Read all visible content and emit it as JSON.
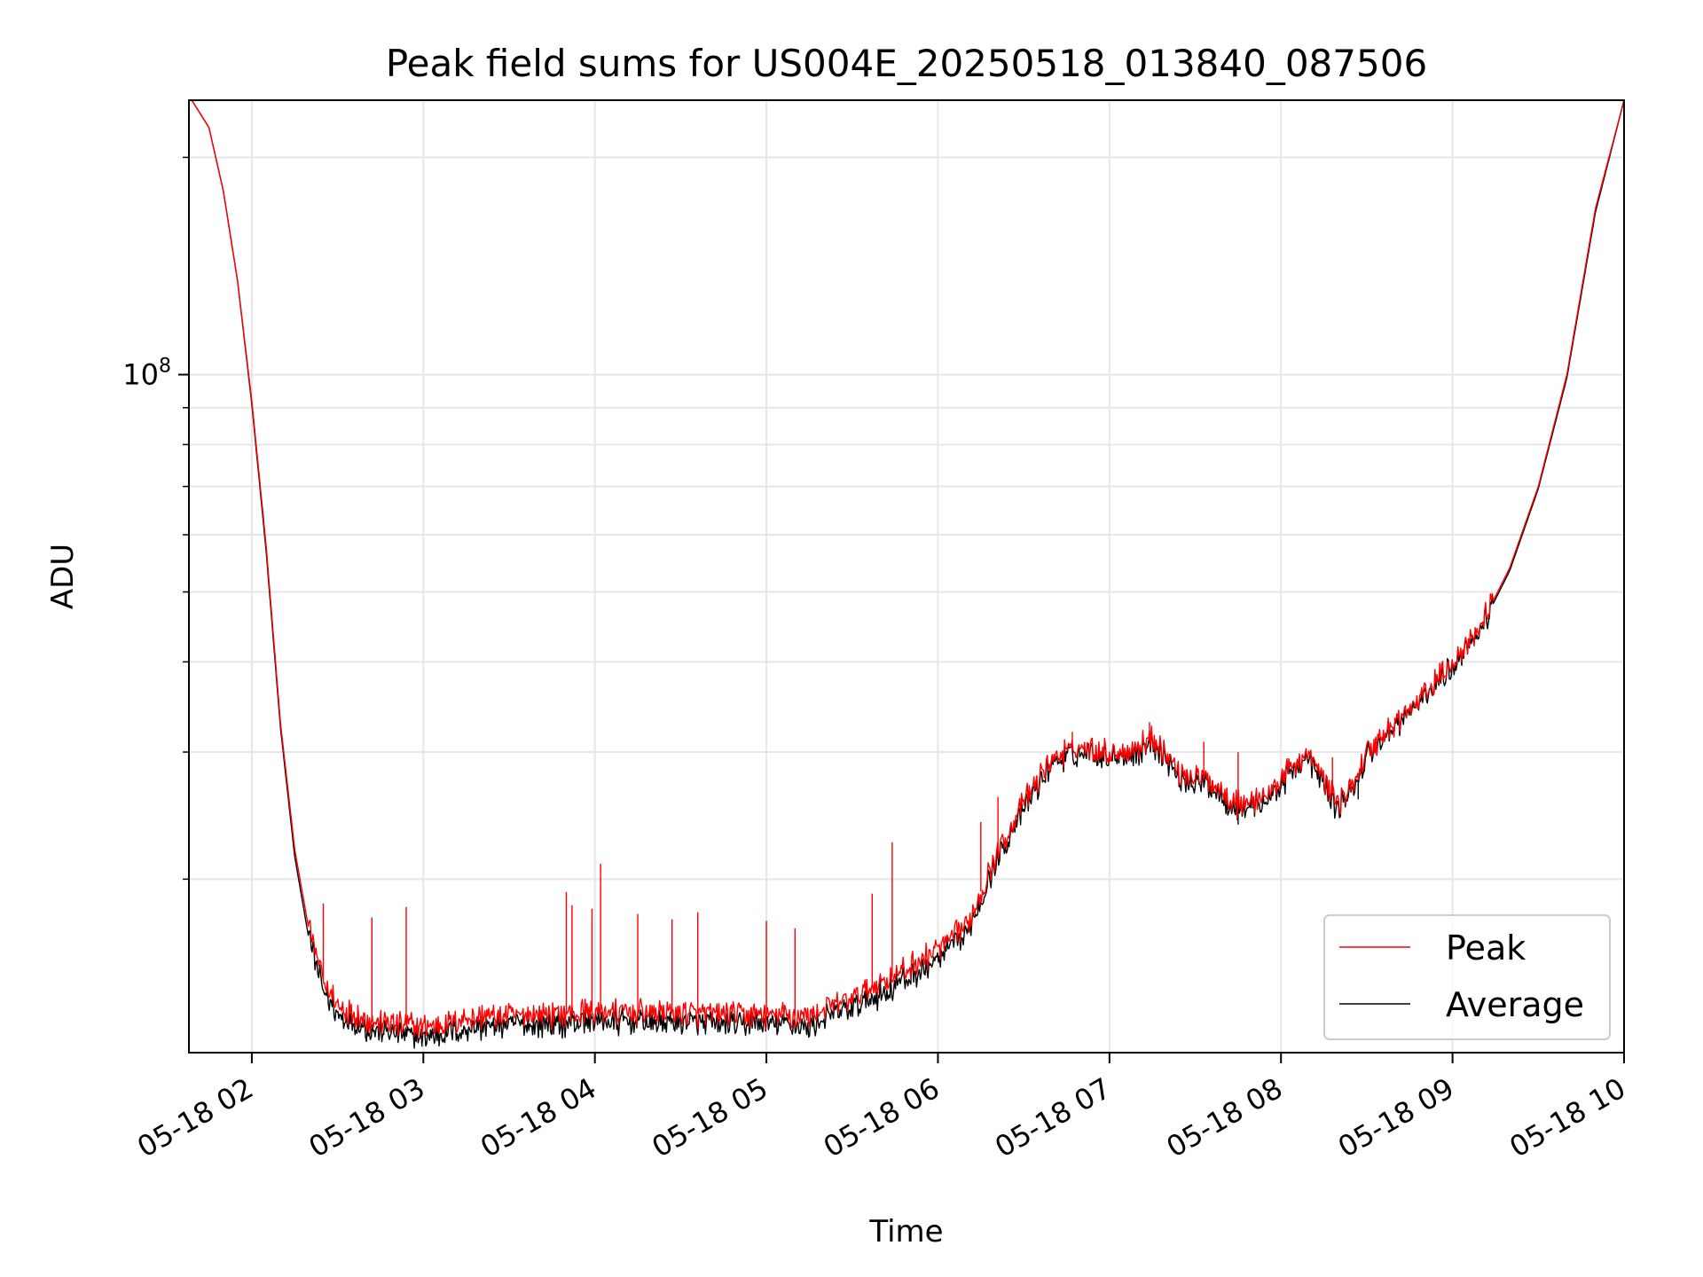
{
  "chart_data": {
    "type": "line",
    "title": "Peak field sums for US004E_20250518_013840_087506",
    "xlabel": "Time",
    "ylabel": "ADU",
    "yscale": "log",
    "grid": true,
    "legend_position": "lower-right",
    "xlim": [
      "2025-05-18T01:38",
      "2025-05-18T10:00"
    ],
    "ylim": [
      11500000,
      240000000
    ],
    "x_tick_labels": [
      "05-18 02",
      "05-18 03",
      "05-18 04",
      "05-18 05",
      "05-18 06",
      "05-18 07",
      "05-18 08",
      "05-18 09",
      "05-18 10"
    ],
    "x_ticks": [
      "2025-05-18T02:00",
      "2025-05-18T03:00",
      "2025-05-18T04:00",
      "2025-05-18T05:00",
      "2025-05-18T06:00",
      "2025-05-18T07:00",
      "2025-05-18T08:00",
      "2025-05-18T09:00",
      "2025-05-18T10:00"
    ],
    "y_tick_labels": [
      {
        "base": "10",
        "exp": "8",
        "value": 100000000
      }
    ],
    "y_minor_ticks": [
      20000000,
      30000000,
      40000000,
      50000000,
      60000000,
      70000000,
      80000000,
      90000000,
      200000000
    ],
    "series": [
      {
        "name": "Peak",
        "color": "#ff0000",
        "x": [
          "2025-05-18T01:39",
          "2025-05-18T01:45",
          "2025-05-18T01:50",
          "2025-05-18T01:55",
          "2025-05-18T02:00",
          "2025-05-18T02:05",
          "2025-05-18T02:10",
          "2025-05-18T02:15",
          "2025-05-18T02:20",
          "2025-05-18T02:25",
          "2025-05-18T02:30",
          "2025-05-18T02:40",
          "2025-05-18T02:50",
          "2025-05-18T03:00",
          "2025-05-18T03:20",
          "2025-05-18T03:40",
          "2025-05-18T04:00",
          "2025-05-18T04:20",
          "2025-05-18T04:40",
          "2025-05-18T05:00",
          "2025-05-18T05:15",
          "2025-05-18T05:30",
          "2025-05-18T05:45",
          "2025-05-18T06:00",
          "2025-05-18T06:10",
          "2025-05-18T06:20",
          "2025-05-18T06:30",
          "2025-05-18T06:40",
          "2025-05-18T06:50",
          "2025-05-18T07:00",
          "2025-05-18T07:10",
          "2025-05-18T07:15",
          "2025-05-18T07:25",
          "2025-05-18T07:35",
          "2025-05-18T07:45",
          "2025-05-18T07:55",
          "2025-05-18T08:05",
          "2025-05-18T08:10",
          "2025-05-18T08:15",
          "2025-05-18T08:20",
          "2025-05-18T08:25",
          "2025-05-18T08:30",
          "2025-05-18T08:40",
          "2025-05-18T08:50",
          "2025-05-18T09:00",
          "2025-05-18T09:10",
          "2025-05-18T09:20",
          "2025-05-18T09:30",
          "2025-05-18T09:40",
          "2025-05-18T09:50",
          "2025-05-18T10:00"
        ],
        "values": [
          240000000,
          220000000,
          180000000,
          135000000,
          92000000,
          58000000,
          33000000,
          22000000,
          17000000,
          14500000,
          13400000,
          12800000,
          12600000,
          12500000,
          12900000,
          13000000,
          13100000,
          13100000,
          13000000,
          13000000,
          12900000,
          13700000,
          14700000,
          16000000,
          17200000,
          21500000,
          25500000,
          29500000,
          30500000,
          30000000,
          30500000,
          31500000,
          28000000,
          27500000,
          25500000,
          26000000,
          29000000,
          29600000,
          27500000,
          25500000,
          27000000,
          30000000,
          33000000,
          36000000,
          40000000,
          45000000,
          54000000,
          70000000,
          100000000,
          170000000,
          240000000
        ],
        "spikes": [
          {
            "x": "2025-05-18T02:25",
            "y": 18500000
          },
          {
            "x": "2025-05-18T02:42",
            "y": 17700000
          },
          {
            "x": "2025-05-18T02:54",
            "y": 18300000
          },
          {
            "x": "2025-05-18T03:50",
            "y": 19200000
          },
          {
            "x": "2025-05-18T03:52",
            "y": 18400000
          },
          {
            "x": "2025-05-18T03:59",
            "y": 18200000
          },
          {
            "x": "2025-05-18T04:02",
            "y": 21000000
          },
          {
            "x": "2025-05-18T04:15",
            "y": 17900000
          },
          {
            "x": "2025-05-18T04:27",
            "y": 17600000
          },
          {
            "x": "2025-05-18T04:36",
            "y": 18000000
          },
          {
            "x": "2025-05-18T05:00",
            "y": 17500000
          },
          {
            "x": "2025-05-18T05:10",
            "y": 17100000
          },
          {
            "x": "2025-05-18T05:37",
            "y": 19100000
          },
          {
            "x": "2025-05-18T05:44",
            "y": 22500000
          },
          {
            "x": "2025-05-18T06:15",
            "y": 24000000
          },
          {
            "x": "2025-05-18T06:21",
            "y": 26000000
          },
          {
            "x": "2025-05-18T06:47",
            "y": 32000000
          },
          {
            "x": "2025-05-18T07:14",
            "y": 33000000
          },
          {
            "x": "2025-05-18T07:33",
            "y": 31000000
          },
          {
            "x": "2025-05-18T07:45",
            "y": 30000000
          },
          {
            "x": "2025-05-18T08:18",
            "y": 29500000
          }
        ]
      },
      {
        "name": "Average",
        "color": "#000000",
        "x": [
          "2025-05-18T01:39",
          "2025-05-18T01:45",
          "2025-05-18T01:50",
          "2025-05-18T01:55",
          "2025-05-18T02:00",
          "2025-05-18T02:05",
          "2025-05-18T02:10",
          "2025-05-18T02:15",
          "2025-05-18T02:20",
          "2025-05-18T02:25",
          "2025-05-18T02:30",
          "2025-05-18T02:40",
          "2025-05-18T02:50",
          "2025-05-18T03:00",
          "2025-05-18T03:20",
          "2025-05-18T03:40",
          "2025-05-18T04:00",
          "2025-05-18T04:20",
          "2025-05-18T04:40",
          "2025-05-18T05:00",
          "2025-05-18T05:15",
          "2025-05-18T05:30",
          "2025-05-18T05:45",
          "2025-05-18T06:00",
          "2025-05-18T06:10",
          "2025-05-18T06:20",
          "2025-05-18T06:30",
          "2025-05-18T06:40",
          "2025-05-18T06:50",
          "2025-05-18T07:00",
          "2025-05-18T07:10",
          "2025-05-18T07:15",
          "2025-05-18T07:25",
          "2025-05-18T07:35",
          "2025-05-18T07:45",
          "2025-05-18T07:55",
          "2025-05-18T08:05",
          "2025-05-18T08:10",
          "2025-05-18T08:15",
          "2025-05-18T08:20",
          "2025-05-18T08:25",
          "2025-05-18T08:30",
          "2025-05-18T08:40",
          "2025-05-18T08:50",
          "2025-05-18T09:00",
          "2025-05-18T09:10",
          "2025-05-18T09:20",
          "2025-05-18T09:30",
          "2025-05-18T09:40",
          "2025-05-18T09:50",
          "2025-05-18T10:00"
        ],
        "values": [
          240000000,
          220000000,
          180000000,
          135000000,
          91000000,
          57000000,
          32500000,
          21500000,
          16500000,
          14100000,
          13000000,
          12400000,
          12200000,
          12100000,
          12500000,
          12600000,
          12700000,
          12700000,
          12600000,
          12600000,
          12500000,
          13300000,
          14200000,
          15500000,
          16800000,
          21000000,
          25000000,
          29000000,
          30000000,
          29600000,
          30000000,
          31000000,
          27500000,
          27000000,
          25000000,
          25600000,
          28600000,
          29200000,
          27000000,
          25000000,
          26600000,
          29600000,
          32600000,
          35600000,
          39600000,
          44600000,
          53500000,
          69500000,
          99000000,
          168000000,
          240000000
        ],
        "spikes": [
          {
            "x": "2025-05-18T07:45",
            "y": 23800000
          },
          {
            "x": "2025-05-18T08:27",
            "y": 25800000
          }
        ]
      }
    ]
  }
}
